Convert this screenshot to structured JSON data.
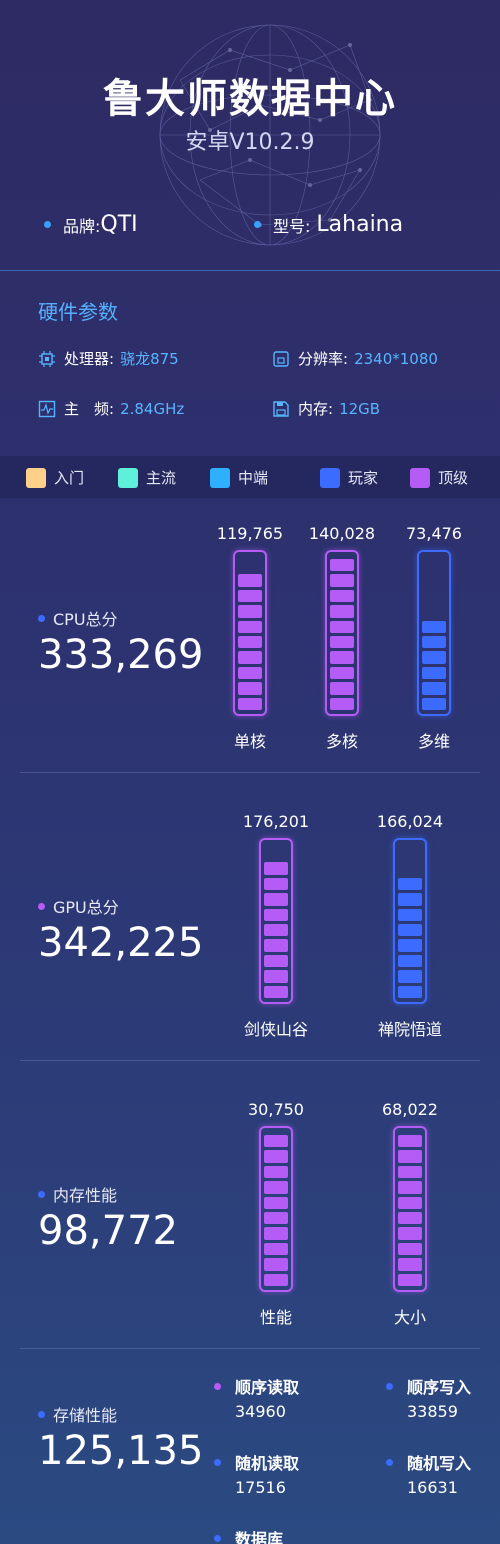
{
  "header": {
    "title": "鲁大师数据中心",
    "subtitle": "安卓V10.2.9",
    "brand_label": "品牌:",
    "brand_value": "QTI",
    "model_label": "型号:",
    "model_value": "Lahaina"
  },
  "hardware": {
    "title": "硬件参数",
    "processor_label": "处理器:",
    "processor_value": "骁龙875",
    "resolution_label": "分辨率:",
    "resolution_value": "2340*1080",
    "freq_label": "主　频:",
    "freq_value": "2.84GHz",
    "memory_label": "内存:",
    "memory_value": "12GB"
  },
  "legend": [
    {
      "label": "入门",
      "color": "#ffd08a"
    },
    {
      "label": "主流",
      "color": "#5ef0d8"
    },
    {
      "label": "中端",
      "color": "#2fb0ff"
    },
    {
      "label": "玩家",
      "color": "#3c6cff"
    },
    {
      "label": "顶级",
      "color": "#b45cf5"
    }
  ],
  "cpu": {
    "label": "CPU总分",
    "score": "333,269",
    "bars": [
      {
        "value": "119,765",
        "name": "单核",
        "level": 9,
        "color": "#b45cf5"
      },
      {
        "value": "140,028",
        "name": "多核",
        "level": 10,
        "color": "#b45cf5"
      },
      {
        "value": "73,476",
        "name": "多维",
        "level": 6,
        "color": "#3c6cff"
      }
    ]
  },
  "gpu": {
    "label": "GPU总分",
    "score": "342,225",
    "bars": [
      {
        "value": "176,201",
        "name": "剑侠山谷",
        "level": 9,
        "color": "#b45cf5"
      },
      {
        "value": "166,024",
        "name": "禅院悟道",
        "level": 8,
        "color": "#3c6cff"
      }
    ]
  },
  "memory": {
    "label": "内存性能",
    "score": "98,772",
    "bars": [
      {
        "value": "30,750",
        "name": "性能",
        "level": 10,
        "color": "#b45cf5"
      },
      {
        "value": "68,022",
        "name": "大小",
        "level": 10,
        "color": "#b45cf5"
      }
    ]
  },
  "storage": {
    "label": "存储性能",
    "score": "125,135",
    "items": [
      {
        "name": "顺序读取",
        "value": "34960",
        "color": "#b45cf5"
      },
      {
        "name": "顺序写入",
        "value": "33859",
        "color": "#3c6cff"
      },
      {
        "name": "随机读取",
        "value": "17516",
        "color": "#3c6cff"
      },
      {
        "name": "随机写入",
        "value": "16631",
        "color": "#3c6cff"
      },
      {
        "name": "数据库",
        "value": "",
        "color": "#3c6cff"
      }
    ]
  }
}
